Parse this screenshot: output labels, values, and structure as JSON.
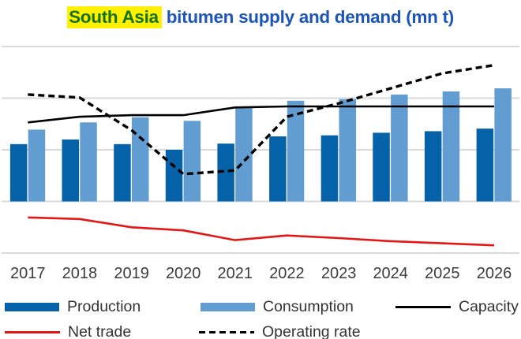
{
  "title": {
    "highlight": "South Asia",
    "rest": " bitumen supply and demand (mn t)"
  },
  "colors": {
    "production": "#0562A8",
    "consumption": "#629DD2",
    "capacity": "#000000",
    "net_trade": "#E51715",
    "operating_rate": "#000000",
    "title_blue": "#1D56B8",
    "title_green": "#157115",
    "highlight_yellow": "#FFF100",
    "gridline": "#D9D9D9",
    "axis_text": "#3B3B3B"
  },
  "chart_data": {
    "type": "bar",
    "subtype": "grouped bars with overlay lines",
    "title": "South Asia bitumen supply and demand (mn t)",
    "categories": [
      "2017",
      "2018",
      "2019",
      "2020",
      "2021",
      "2022",
      "2023",
      "2024",
      "2025",
      "2026"
    ],
    "series": [
      {
        "name": "Production",
        "type": "bar",
        "color_key": "production",
        "values": [
          1.11,
          1.2,
          1.11,
          1.0,
          1.12,
          1.26,
          1.28,
          1.33,
          1.36,
          1.41
        ]
      },
      {
        "name": "Consumption",
        "type": "bar",
        "color_key": "consumption",
        "values": [
          1.39,
          1.53,
          1.63,
          1.56,
          1.83,
          1.95,
          1.98,
          2.07,
          2.13,
          2.19
        ]
      },
      {
        "name": "Capacity",
        "type": "line",
        "color_key": "capacity",
        "values": [
          1.53,
          1.64,
          1.67,
          1.67,
          1.82,
          1.84,
          1.84,
          1.84,
          1.84,
          1.84
        ]
      },
      {
        "name": "Net trade",
        "type": "line",
        "color_key": "net_trade",
        "values": [
          -0.31,
          -0.34,
          -0.5,
          -0.56,
          -0.75,
          -0.66,
          -0.71,
          -0.77,
          -0.81,
          -0.85
        ]
      },
      {
        "name": "Operating rate",
        "type": "line-dashed",
        "color_key": "operating_rate",
        "values": [
          2.07,
          2.01,
          1.38,
          0.53,
          0.6,
          1.64,
          1.9,
          2.19,
          2.48,
          2.64
        ]
      }
    ],
    "xlabel": "",
    "ylabel": "",
    "y_axis_tick_labels": "none visible; values expressed in gridline units (1.0 = one gridline interval, 0 = bar baseline)",
    "gridlines_at": [
      3,
      2,
      1,
      0,
      -1
    ],
    "ylim": [
      -1.1,
      3.3
    ],
    "grid": "horizontal only",
    "legend_position": "bottom"
  }
}
